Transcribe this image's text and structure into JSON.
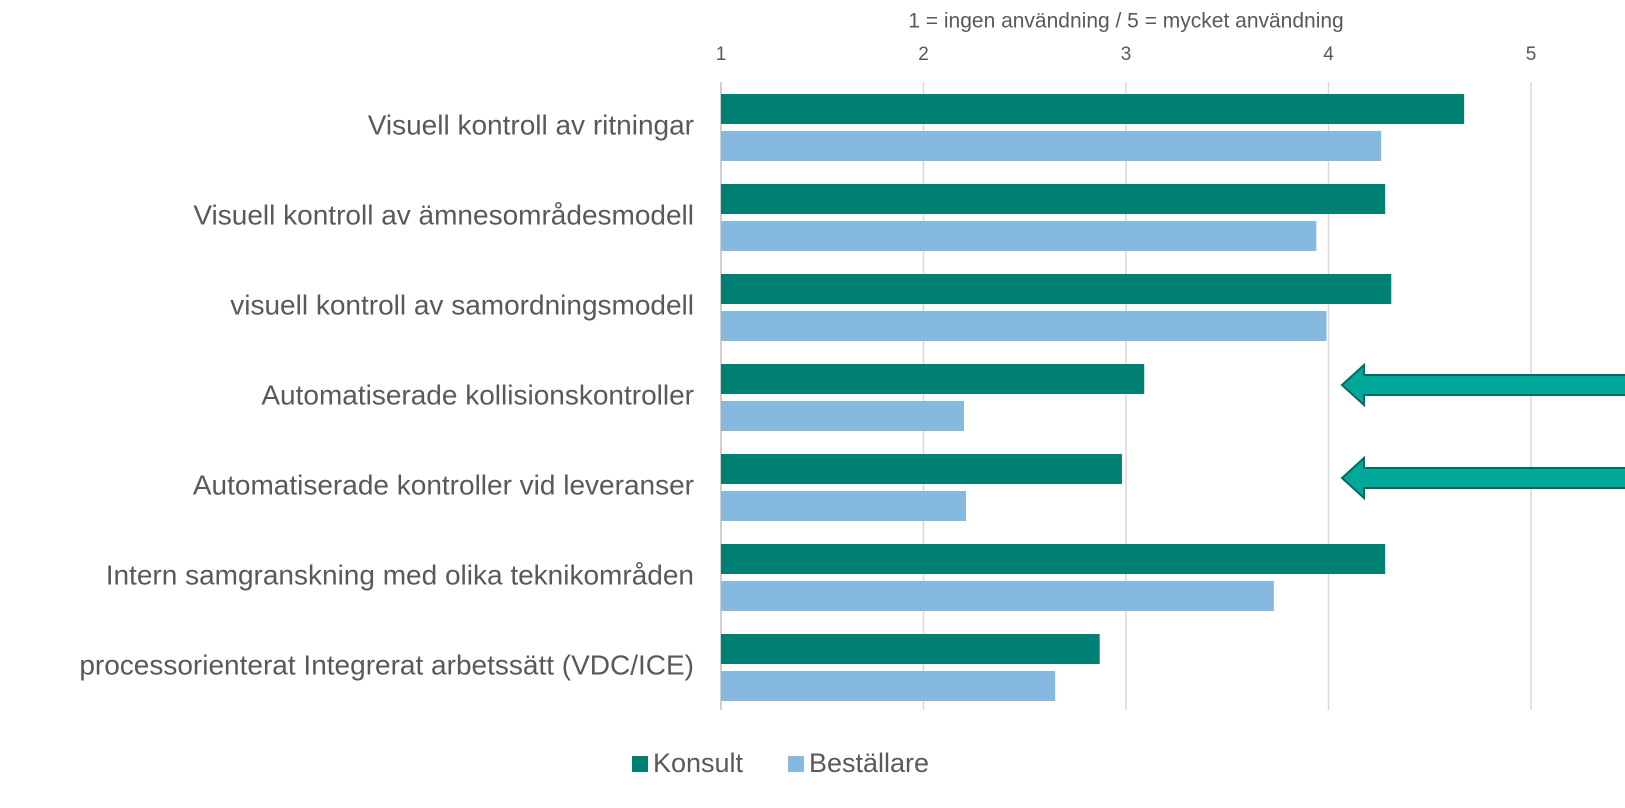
{
  "chart_data": {
    "type": "barh",
    "x_label": "1 = ingen användning / 5 = mycket användning",
    "categories": [
      "Visuell kontroll av ritningar",
      "Visuell kontroll av ämnesområdesmodell",
      "visuell kontroll av samordningsmodell",
      "Automatiserade kollisionskontroller",
      "Automatiserade kontroller vid leveranser",
      "Intern samgranskning med olika teknikområden",
      "processorienterat Integrerat arbetssätt (VDC/ICE)"
    ],
    "series": [
      {
        "name": "Konsult",
        "color": "#007f73",
        "values": [
          4.67,
          4.28,
          4.31,
          3.09,
          2.98,
          4.28,
          2.87
        ]
      },
      {
        "name": "Beställare",
        "color": "#86b9e0",
        "values": [
          4.26,
          3.94,
          3.99,
          2.2,
          2.21,
          3.73,
          2.65
        ]
      }
    ],
    "xlim": [
      1,
      5
    ],
    "xticks": [
      1,
      2,
      3,
      4,
      5
    ],
    "grid": true,
    "legend": "bottom"
  }
}
